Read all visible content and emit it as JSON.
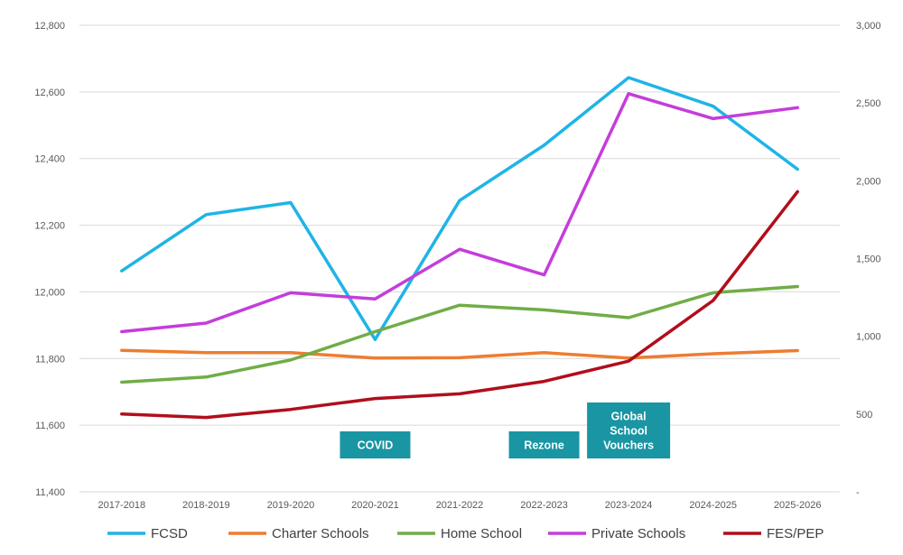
{
  "chart_data": {
    "type": "line",
    "title": "",
    "xlabel": "",
    "ylabel": "",
    "categories": [
      "2017-2018",
      "2018-2019",
      "2019-2020",
      "2020-2021",
      "2021-2022",
      "2022-2023",
      "2023-2024",
      "2024-2025",
      "2025-2026"
    ],
    "y_left": {
      "ylim": [
        11400,
        12800
      ],
      "ticks": [
        11400,
        11600,
        11800,
        12000,
        12200,
        12400,
        12600,
        12800
      ],
      "tick_labels": [
        "11,400",
        "11,600",
        "11,800",
        "12,000",
        "12,200",
        "12,400",
        "12,600",
        "12,800"
      ]
    },
    "y_right": {
      "ylim": [
        0,
        3000
      ],
      "ticks": [
        0,
        500,
        1000,
        1500,
        2000,
        2500,
        3000
      ],
      "tick_labels": [
        "-",
        "500",
        "1,000",
        "1,500",
        "2,000",
        "2,500",
        "3,000"
      ]
    },
    "grid": true,
    "legend_position": "bottom",
    "series": [
      {
        "name": "FCSD",
        "axis": "left",
        "color": "#1fb4e6",
        "values": [
          12063,
          12232,
          12268,
          11857,
          12274,
          12440,
          12643,
          12557,
          12368
        ]
      },
      {
        "name": "Charter Schools",
        "axis": "right",
        "color": "#ed7d31",
        "values": [
          910,
          895,
          895,
          860,
          862,
          895,
          860,
          888,
          908
        ]
      },
      {
        "name": "Home School",
        "axis": "right",
        "color": "#70ad47",
        "values": [
          705,
          738,
          848,
          1030,
          1200,
          1170,
          1120,
          1280,
          1320
        ]
      },
      {
        "name": "Private Schools",
        "axis": "right",
        "color": "#c43ddb",
        "values": [
          1030,
          1085,
          1280,
          1240,
          1560,
          1395,
          2560,
          2400,
          2470
        ]
      },
      {
        "name": "FES/PEP",
        "axis": "right",
        "color": "#b10e1c",
        "values": [
          500,
          478,
          530,
          600,
          630,
          710,
          840,
          1230,
          1930
        ]
      }
    ],
    "annotations": [
      {
        "lines": [
          "COVID"
        ],
        "category_index": 3,
        "color": "#1995a3"
      },
      {
        "lines": [
          "Rezone"
        ],
        "category_index": 5,
        "color": "#1995a3"
      },
      {
        "lines": [
          "Global",
          "School",
          "Vouchers"
        ],
        "category_index": 6,
        "color": "#1995a3"
      }
    ]
  }
}
